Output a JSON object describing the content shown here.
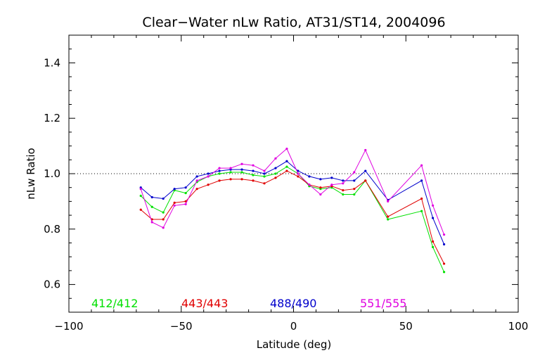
{
  "chart_data": {
    "type": "line",
    "title": "Clear−Water nLw Ratio, AT31/ST14, 2004096",
    "xlabel": "Latitude (deg)",
    "ylabel": "nLw Ratio",
    "xlim": [
      -100,
      100
    ],
    "ylim": [
      0.5,
      1.5
    ],
    "xticks": [
      -100,
      -50,
      0,
      50,
      100
    ],
    "xtick_labels": [
      "−100",
      "−50",
      "0",
      "50",
      "100"
    ],
    "yticks": [
      0.6,
      0.8,
      1.0,
      1.2,
      1.4
    ],
    "ytick_labels": [
      "0.6",
      "0.8",
      "1.0",
      "1.2",
      "1.4"
    ],
    "reference_line": 1.0,
    "grid": false,
    "legend_position": "bottom-inside",
    "x": [
      -68,
      -63,
      -58,
      -53,
      -48,
      -43,
      -38,
      -33,
      -28,
      -23,
      -18,
      -13,
      -8,
      -3,
      2,
      7,
      12,
      17,
      22,
      27,
      32,
      42,
      57,
      62,
      67
    ],
    "series": [
      {
        "name": "412/412",
        "color": "#00e000",
        "values": [
          0.92,
          0.88,
          0.86,
          0.94,
          0.93,
          0.97,
          0.99,
          1.0,
          1.005,
          1.005,
          0.995,
          0.99,
          1.0,
          1.025,
          1.0,
          0.955,
          0.945,
          0.95,
          0.925,
          0.925,
          0.975,
          0.835,
          0.865,
          0.735,
          0.645
        ]
      },
      {
        "name": "443/443",
        "color": "#e00000",
        "values": [
          0.87,
          0.835,
          0.835,
          0.895,
          0.9,
          0.945,
          0.96,
          0.975,
          0.98,
          0.98,
          0.975,
          0.965,
          0.985,
          1.01,
          0.99,
          0.96,
          0.95,
          0.955,
          0.94,
          0.945,
          0.975,
          0.845,
          0.91,
          0.755,
          0.675
        ]
      },
      {
        "name": "488/490",
        "color": "#0000cc",
        "values": [
          0.95,
          0.915,
          0.91,
          0.945,
          0.95,
          0.99,
          1.0,
          1.01,
          1.015,
          1.015,
          1.01,
          1.0,
          1.02,
          1.045,
          1.01,
          0.99,
          0.98,
          0.985,
          0.975,
          0.975,
          1.01,
          0.905,
          0.975,
          0.84,
          0.745
        ]
      },
      {
        "name": "551/555",
        "color": "#e000e0",
        "values": [
          0.945,
          0.825,
          0.805,
          0.885,
          0.89,
          0.975,
          0.99,
          1.02,
          1.02,
          1.035,
          1.03,
          1.01,
          1.055,
          1.09,
          1.0,
          0.96,
          0.925,
          0.96,
          0.965,
          1.005,
          1.085,
          0.9,
          1.03,
          0.885,
          0.78
        ]
      }
    ]
  }
}
